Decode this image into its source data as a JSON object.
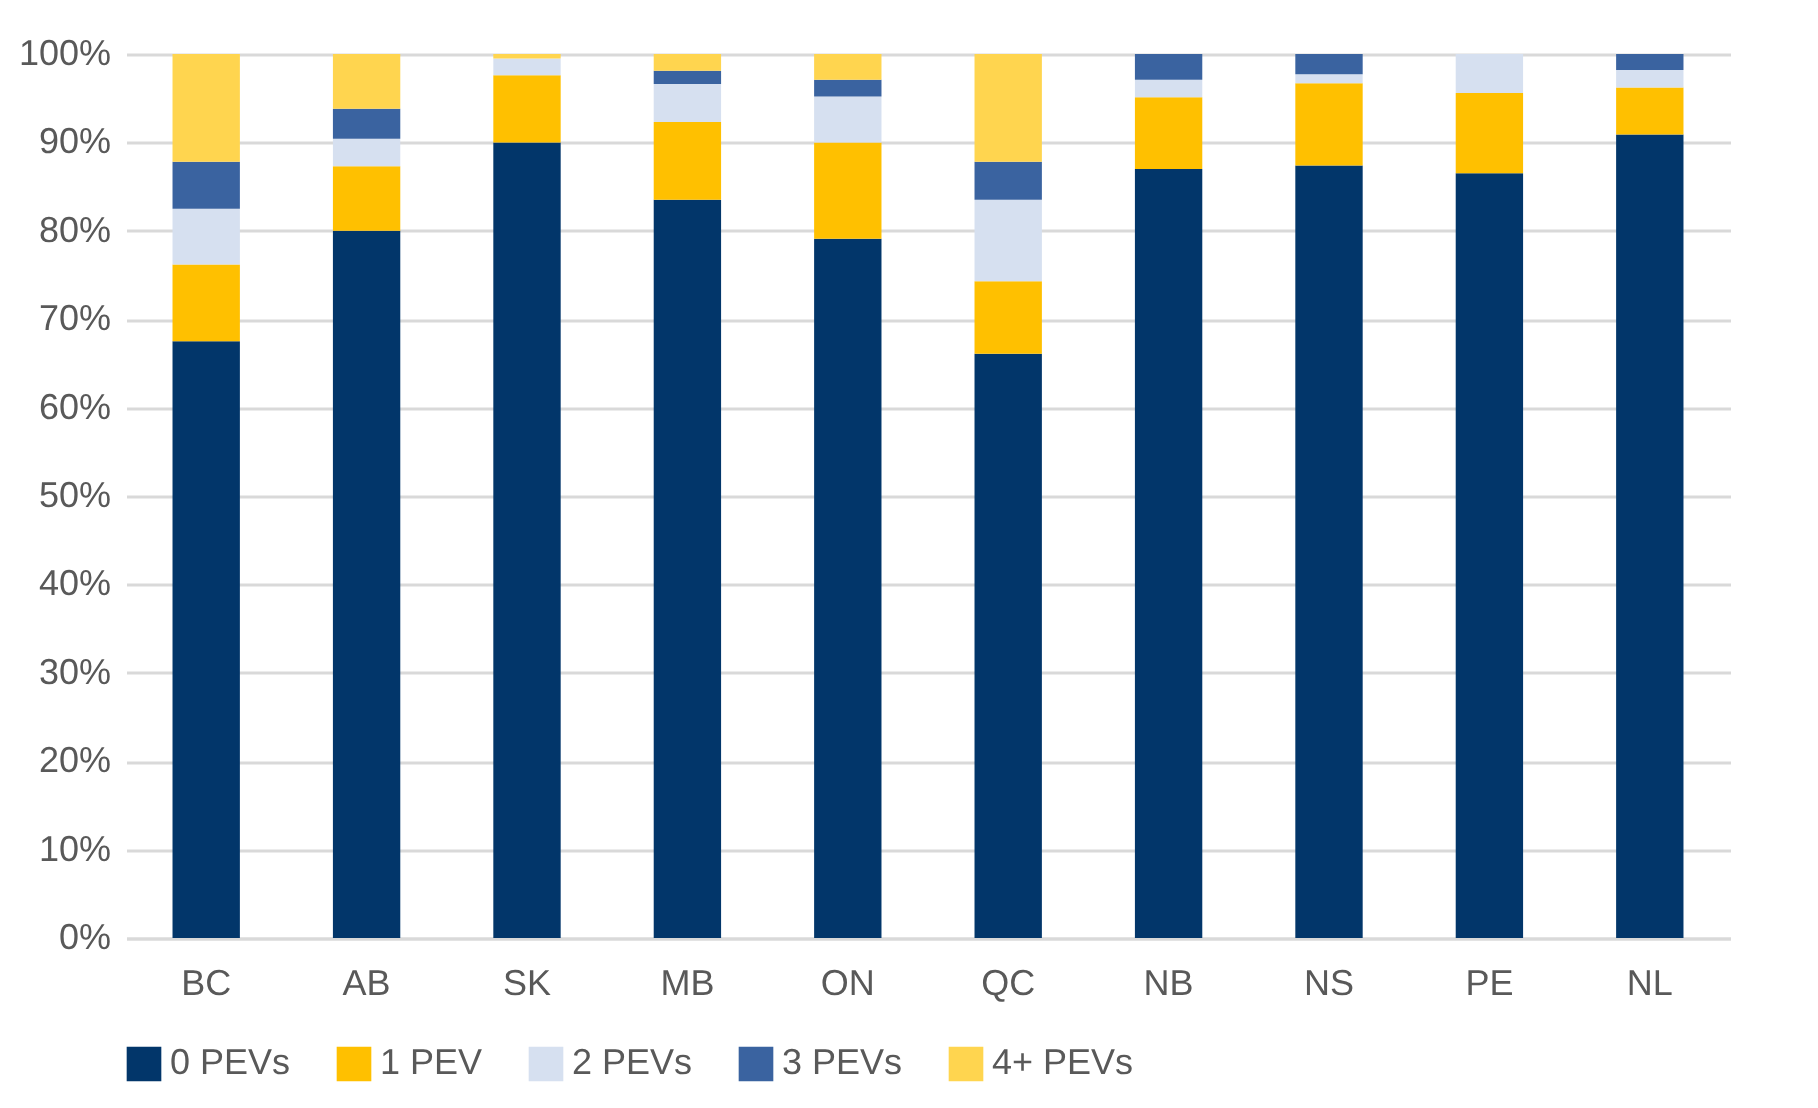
{
  "chart_data": {
    "type": "bar",
    "stacked": true,
    "categories": [
      "BC",
      "AB",
      "SK",
      "MB",
      "ON",
      "QC",
      "NB",
      "NS",
      "PE",
      "NL"
    ],
    "series": [
      {
        "name": "0 PEVs",
        "color": "#02366a",
        "values": [
          67.5,
          80,
          90,
          83.5,
          79.1,
          66.1,
          87,
          87.4,
          86.5,
          90.9
        ]
      },
      {
        "name": "1 PEV",
        "color": "#ffc000",
        "values": [
          8.7,
          7.3,
          7.6,
          8.8,
          10.9,
          8.2,
          8.1,
          9.3,
          9.1,
          5.3
        ]
      },
      {
        "name": "2 PEVs",
        "color": "#d6e0f0",
        "values": [
          6.3,
          3.1,
          1.9,
          4.3,
          5.2,
          9.2,
          2,
          1,
          4.4,
          2
        ]
      },
      {
        "name": "3 PEVs",
        "color": "#3a63a0",
        "values": [
          5.3,
          3.4,
          0,
          1.5,
          1.9,
          4.3,
          2.9,
          2.3,
          0,
          1.8
        ]
      },
      {
        "name": "4+ PEVs",
        "color": "#ffd54f",
        "values": [
          12.2,
          6.2,
          0.5,
          1.9,
          2.9,
          12.2,
          0,
          0,
          0,
          0
        ]
      }
    ],
    "ylim": [
      0,
      100
    ],
    "yticks": [
      {
        "value": 0,
        "label": "0%"
      },
      {
        "value": 10,
        "label": "10%"
      },
      {
        "value": 20,
        "label": "20%"
      },
      {
        "value": 30,
        "label": "30%"
      },
      {
        "value": 40,
        "label": "40%"
      },
      {
        "value": 50,
        "label": "50%"
      },
      {
        "value": 60,
        "label": "60%"
      },
      {
        "value": 70,
        "label": "70%"
      },
      {
        "value": 80,
        "label": "80%"
      },
      {
        "value": 90,
        "label": "90%"
      },
      {
        "value": 100,
        "label": "100%"
      }
    ],
    "grid": "y",
    "legend": "bottom"
  }
}
